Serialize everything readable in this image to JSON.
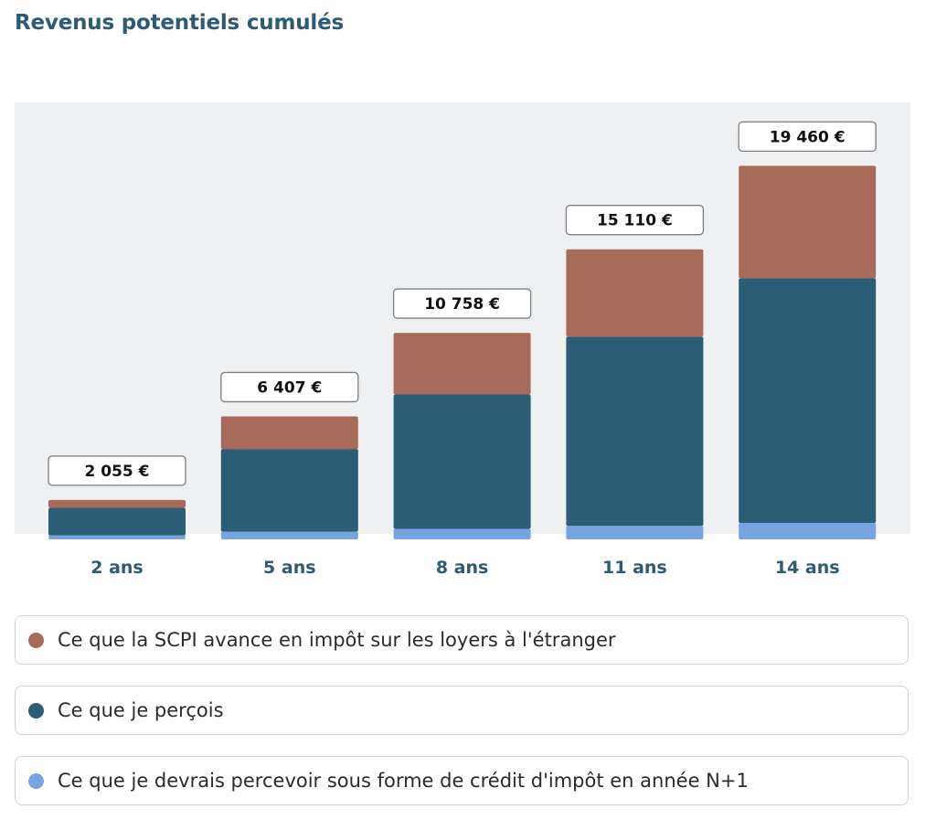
{
  "title": "Revenus potentiels cumulés",
  "colors": {
    "impot_etranger": "#a86b5a",
    "percu": "#2b5d77",
    "credit_impot": "#77a3e1",
    "plot_background": "#eef0f2",
    "axis_label": "#2e5a72"
  },
  "chart_data": {
    "type": "bar",
    "stacked": true,
    "categories": [
      "2 ans",
      "5 ans",
      "8 ans",
      "11 ans",
      "14 ans"
    ],
    "totals": [
      "2 055 €",
      "6 407 €",
      "10 758 €",
      "15 110 €",
      "19 460 €"
    ],
    "series": [
      {
        "name": "Ce que je devrais percevoir sous forme de crédit d'impôt en année N+1",
        "color": "#77a3e1",
        "values": [
          200,
          400,
          550,
          700,
          850
        ]
      },
      {
        "name": "Ce que je perçois",
        "color": "#2b5d77",
        "values": [
          1445,
          4310,
          7000,
          9860,
          12750
        ]
      },
      {
        "name": "Ce que la SCPI avance en impôt sur les loyers à l'étranger",
        "color": "#a86b5a",
        "values": [
          410,
          1697,
          3208,
          4550,
          5860
        ]
      }
    ],
    "ylim": [
      0,
      23000
    ],
    "grid": false,
    "legend_position": "bottom"
  },
  "legend": [
    {
      "label": "Ce que la SCPI avance en impôt sur les loyers à l'étranger",
      "color": "#a86b5a"
    },
    {
      "label": "Ce que je perçois",
      "color": "#2b5d77"
    },
    {
      "label": "Ce que je devrais percevoir sous forme de crédit d'impôt en année N+1",
      "color": "#77a3e1"
    }
  ]
}
